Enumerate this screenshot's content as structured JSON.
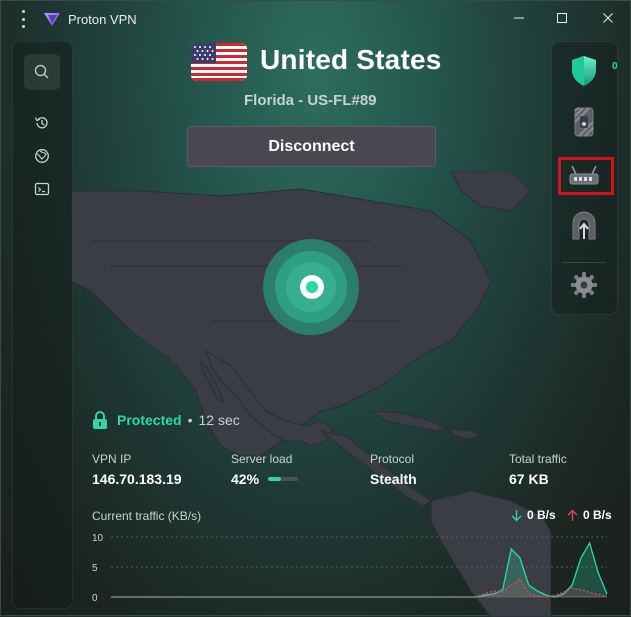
{
  "app": {
    "title": "Proton VPN"
  },
  "header": {
    "country": "United States",
    "server": "Florida - US-FL#89",
    "disconnect_label": "Disconnect"
  },
  "status": {
    "label": "Protected",
    "separator": "•",
    "duration": "12 sec"
  },
  "stats": {
    "vpn_ip_label": "VPN IP",
    "vpn_ip": "146.70.183.19",
    "server_load_label": "Server load",
    "server_load": "42%",
    "server_load_fraction": 0.42,
    "protocol_label": "Protocol",
    "protocol": "Stealth",
    "total_traffic_label": "Total traffic",
    "total_traffic": "67 KB"
  },
  "traffic": {
    "title": "Current traffic (KB/s)",
    "download": "0 B/s",
    "upload": "0 B/s"
  },
  "features": {
    "shield_count": "0"
  },
  "colors": {
    "accent": "#2bd9a6",
    "upload": "#e8465a",
    "highlight": "#d4121c"
  },
  "chart_data": {
    "type": "area",
    "yticks": [
      "10",
      "5",
      "0"
    ],
    "ylim": [
      0,
      10
    ],
    "series": [
      {
        "values": [
          0,
          0,
          0,
          0,
          0,
          0,
          0,
          0,
          0,
          0,
          0,
          0,
          0,
          0,
          0,
          0,
          0,
          0,
          0,
          0,
          0,
          0,
          0,
          0,
          0,
          0,
          0,
          0,
          0,
          0,
          0,
          0,
          0,
          0,
          0,
          0,
          0,
          0,
          0,
          0,
          0,
          0,
          0,
          0.3,
          0.5,
          1.2,
          8,
          6.5,
          2,
          1,
          0.3,
          0,
          0.5,
          2,
          6.5,
          9,
          4,
          0.5
        ]
      },
      {
        "values": [
          0,
          0,
          0,
          0,
          0,
          0,
          0,
          0,
          0,
          0,
          0,
          0,
          0,
          0,
          0,
          0,
          0,
          0,
          0,
          0,
          0,
          0,
          0,
          0,
          0,
          0,
          0,
          0,
          0,
          0,
          0,
          0,
          0,
          0,
          0,
          0,
          0,
          0,
          0,
          0,
          0,
          0,
          0,
          0.6,
          1,
          0.8,
          2,
          3,
          0.6,
          0.2,
          0,
          0.3,
          0.8,
          1.5,
          1.2,
          0.8,
          0.4,
          0.1
        ]
      }
    ]
  }
}
